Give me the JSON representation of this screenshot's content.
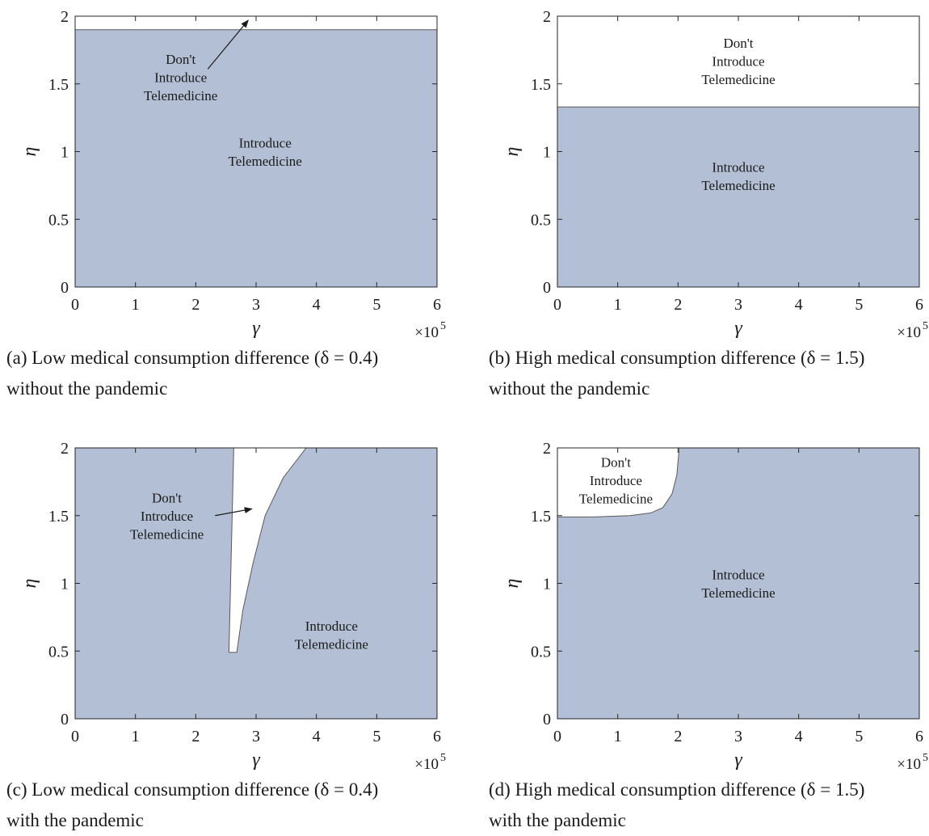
{
  "chart_data": [
    {
      "id": "a",
      "type": "area",
      "xlabel": "γ",
      "ylabel": "η",
      "xlim": [
        0,
        6
      ],
      "ylim": [
        0,
        2
      ],
      "x_ticks": [
        "0",
        "1",
        "2",
        "3",
        "4",
        "5",
        "6"
      ],
      "y_ticks": [
        "0",
        "0.5",
        "1",
        "1.5",
        "2"
      ],
      "x_multiplier": {
        "base": "×10",
        "exponent": "5"
      },
      "boundary": [
        [
          0,
          1.9
        ],
        [
          6,
          1.9
        ]
      ],
      "regions": [
        {
          "name": "introduce",
          "lines": [
            "Introduce",
            "Telemedicine"
          ],
          "fill": "#b3bfd5",
          "anchor": [
            3.15,
            1.0
          ]
        },
        {
          "name": "dont-introduce",
          "lines": [
            "Don't",
            "Introduce",
            "Telemedicine"
          ],
          "fill": "#ffffff",
          "anchor": [
            1.75,
            1.55
          ]
        }
      ],
      "arrow": {
        "from": [
          2.2,
          1.61
        ],
        "to": [
          2.87,
          1.97
        ]
      },
      "caption": [
        "(a) Low medical consumption difference (δ = 0.4)",
        "without the pandemic"
      ]
    },
    {
      "id": "b",
      "type": "area",
      "xlabel": "γ",
      "ylabel": "η",
      "xlim": [
        0,
        6
      ],
      "ylim": [
        0,
        2
      ],
      "x_ticks": [
        "0",
        "1",
        "2",
        "3",
        "4",
        "5",
        "6"
      ],
      "y_ticks": [
        "0",
        "0.5",
        "1",
        "1.5",
        "2"
      ],
      "x_multiplier": {
        "base": "×10",
        "exponent": "5"
      },
      "boundary": [
        [
          0,
          1.33
        ],
        [
          6,
          1.33
        ]
      ],
      "regions": [
        {
          "name": "introduce",
          "lines": [
            "Introduce",
            "Telemedicine"
          ],
          "fill": "#b3bfd5",
          "anchor": [
            3.0,
            0.82
          ]
        },
        {
          "name": "dont-introduce",
          "lines": [
            "Don't",
            "Introduce",
            "Telemedicine"
          ],
          "fill": "#ffffff",
          "anchor": [
            3.0,
            1.67
          ]
        }
      ],
      "caption": [
        "(b) High medical consumption difference (δ = 1.5)",
        "without the pandemic"
      ]
    },
    {
      "id": "c",
      "type": "area",
      "xlabel": "γ",
      "ylabel": "η",
      "xlim": [
        0,
        6
      ],
      "ylim": [
        0,
        2
      ],
      "x_ticks": [
        "0",
        "1",
        "2",
        "3",
        "4",
        "5",
        "6"
      ],
      "y_ticks": [
        "0",
        "0.5",
        "1",
        "1.5",
        "2"
      ],
      "x_multiplier": {
        "base": "×10",
        "exponent": "5"
      },
      "boundary": [
        [
          2.63,
          2.0
        ],
        [
          2.55,
          0.49
        ],
        [
          2.68,
          0.49
        ],
        [
          2.78,
          0.8
        ],
        [
          2.95,
          1.15
        ],
        [
          3.15,
          1.5
        ],
        [
          3.45,
          1.78
        ],
        [
          3.83,
          2.0
        ]
      ],
      "regions": [
        {
          "name": "introduce",
          "lines": [
            "Introduce",
            "Telemedicine"
          ],
          "fill": "#b3bfd5",
          "anchor": [
            4.25,
            0.62
          ]
        },
        {
          "name": "dont-introduce",
          "lines": [
            "Don't",
            "Introduce",
            "Telemedicine"
          ],
          "fill": "#ffffff",
          "anchor": [
            1.52,
            1.5
          ]
        }
      ],
      "arrow": {
        "from": [
          2.32,
          1.5
        ],
        "to": [
          2.93,
          1.55
        ]
      },
      "caption": [
        "(c) Low medical consumption difference (δ = 0.4)",
        "with the pandemic"
      ]
    },
    {
      "id": "d",
      "type": "area",
      "xlabel": "γ",
      "ylabel": "η",
      "xlim": [
        0,
        6
      ],
      "ylim": [
        0,
        2
      ],
      "x_ticks": [
        "0",
        "1",
        "2",
        "3",
        "4",
        "5",
        "6"
      ],
      "y_ticks": [
        "0",
        "0.5",
        "1",
        "1.5",
        "2"
      ],
      "x_multiplier": {
        "base": "×10",
        "exponent": "5"
      },
      "boundary": [
        [
          0,
          2.0
        ],
        [
          0,
          1.49
        ],
        [
          0.6,
          1.49
        ],
        [
          1.2,
          1.5
        ],
        [
          1.55,
          1.52
        ],
        [
          1.75,
          1.56
        ],
        [
          1.9,
          1.66
        ],
        [
          1.98,
          1.8
        ],
        [
          2.02,
          2.0
        ]
      ],
      "regions": [
        {
          "name": "introduce",
          "lines": [
            "Introduce",
            "Telemedicine"
          ],
          "fill": "#b3bfd5",
          "anchor": [
            3.0,
            1.0
          ]
        },
        {
          "name": "dont-introduce",
          "lines": [
            "Don't",
            "Introduce",
            "Telemedicine"
          ],
          "fill": "#ffffff",
          "anchor": [
            0.97,
            1.76
          ]
        }
      ],
      "caption": [
        "(d) High medical consumption difference (δ = 1.5)",
        "with the pandemic"
      ]
    }
  ]
}
